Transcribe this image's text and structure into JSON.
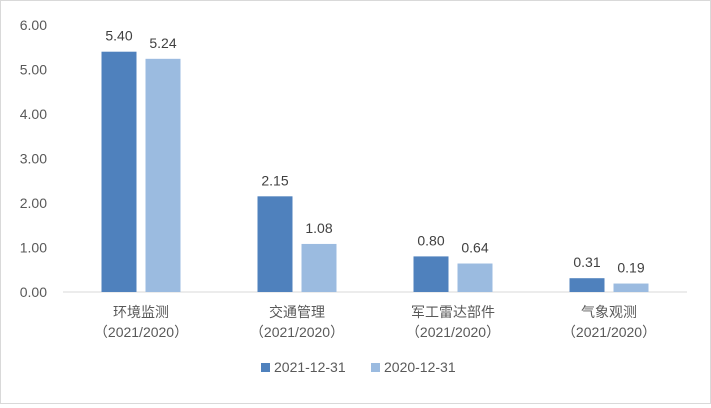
{
  "chart_data": {
    "type": "bar",
    "categories": [
      [
        "环境监测",
        "（2021/2020）"
      ],
      [
        "交通管理",
        "（2021/2020）"
      ],
      [
        "军工雷达部件",
        "（2021/2020）"
      ],
      [
        "气象观测",
        "（2021/2020）"
      ]
    ],
    "series": [
      {
        "name": "2021-12-31",
        "color": "#4f81bd",
        "values": [
          5.4,
          2.15,
          0.8,
          0.31
        ]
      },
      {
        "name": "2020-12-31",
        "color": "#9bbbe0",
        "values": [
          5.24,
          1.08,
          0.64,
          0.19
        ]
      }
    ],
    "yticks": [
      "0.00",
      "1.00",
      "2.00",
      "3.00",
      "4.00",
      "5.00",
      "6.00"
    ],
    "ylim": [
      0,
      6
    ],
    "grid": false,
    "legend": "bottom-center",
    "title": "",
    "xlabel": "",
    "ylabel": ""
  }
}
